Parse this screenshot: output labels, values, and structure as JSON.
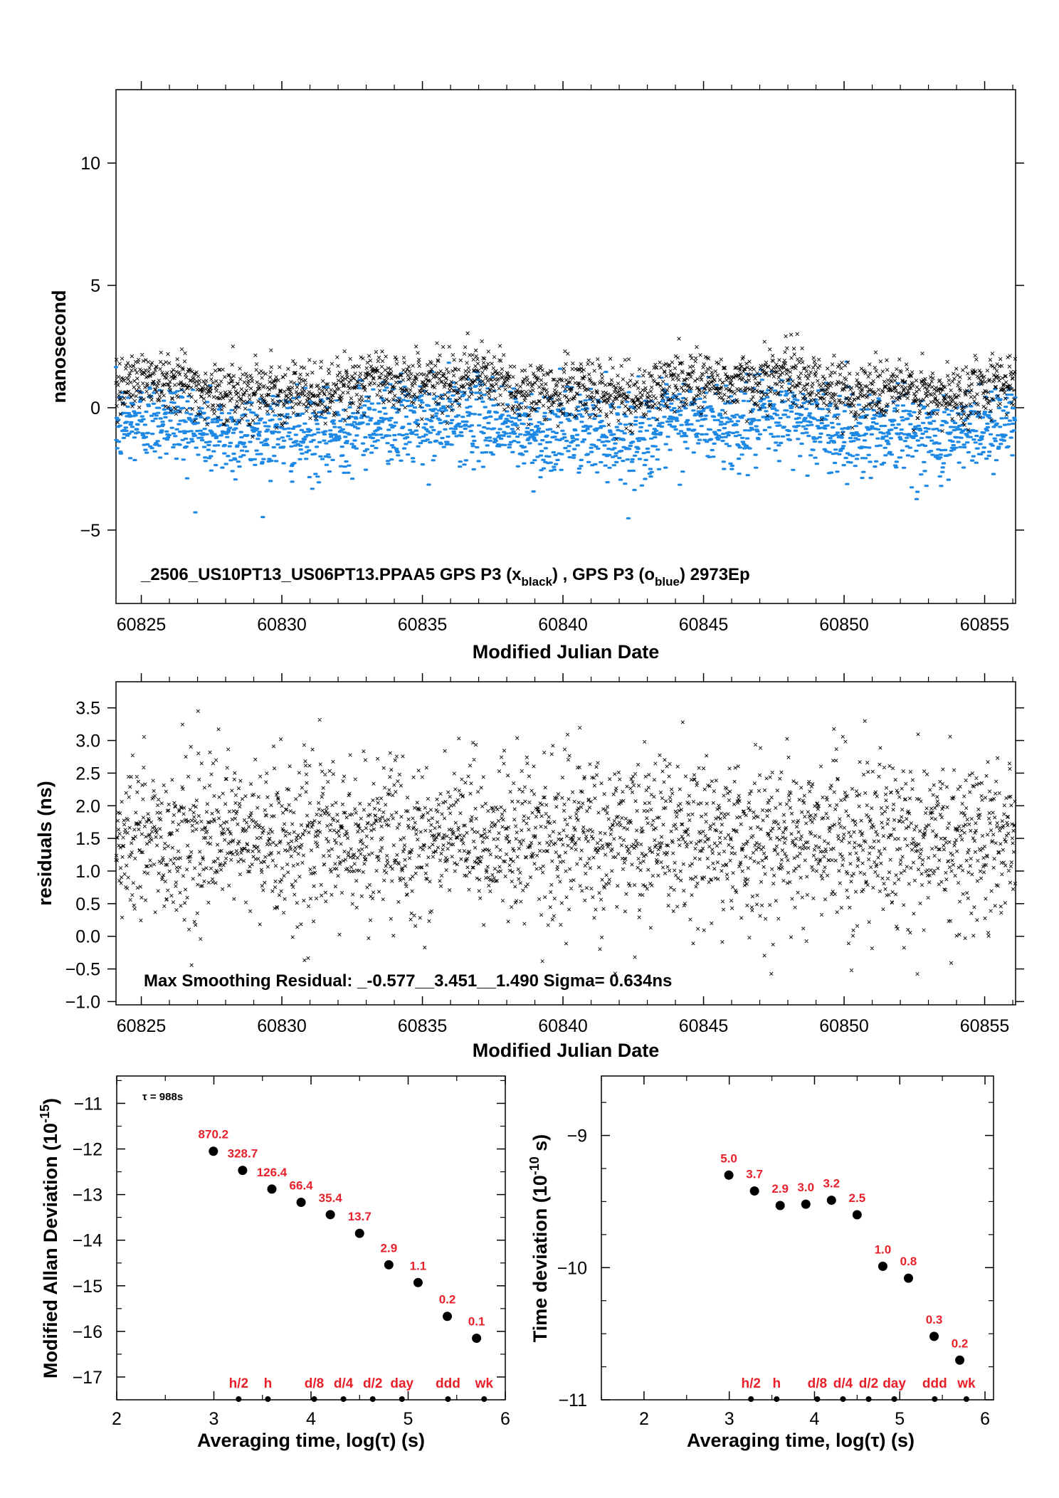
{
  "colors": {
    "black_series": "#000000",
    "blue_series": "#1e88e5",
    "red_labels": "#e8202a"
  },
  "chart_data": [
    {
      "type": "scatter",
      "id": "timeseries",
      "xlabel": "Modified Julian Date",
      "ylabel": "nanosecond",
      "xlim": [
        60824.1,
        60856.1
      ],
      "ylim": [
        -8,
        13
      ],
      "xticks": [
        "60825",
        "60830",
        "60835",
        "60840",
        "60845",
        "60850",
        "60855"
      ],
      "yticks": [
        "-5",
        "0",
        "5",
        "10"
      ],
      "annotation": {
        "prefix": "_2506_US10PT13_US06PT13.PPAA5     GPS P3 (x",
        "sub1": "black",
        "mid": ") ,  GPS P3 (o",
        "sub2": "blue",
        "suffix": ")  2973Ep"
      },
      "series": [
        {
          "name": "GPS P3 (x black)",
          "marker": "x",
          "color": "#000000",
          "mean_ns": 0.9,
          "sigma_ns": 0.6,
          "count": 2973
        },
        {
          "name": "GPS P3 (o blue)",
          "marker": "dot",
          "color": "#1e88e5",
          "mean_ns": -0.8,
          "sigma_ns": 0.85,
          "count": 2973
        }
      ]
    },
    {
      "type": "scatter",
      "id": "residuals",
      "xlabel": "Modified Julian Date",
      "ylabel": "residuals (ns)",
      "xlim": [
        60824.1,
        60856.1
      ],
      "ylim": [
        -1.05,
        3.9
      ],
      "xticks": [
        "60825",
        "60830",
        "60835",
        "60840",
        "60845",
        "60850",
        "60855"
      ],
      "yticks": [
        "−1.0",
        "−0.5",
        "0.0",
        "0.5",
        "1.0",
        "1.5",
        "2.0",
        "2.5",
        "3.0",
        "3.5"
      ],
      "annotation": "Max Smoothing Residual: _-0.577__3.451__1.490  Sigma= 0.634ns",
      "series": [
        {
          "marker": "x",
          "color": "#000000",
          "mean_ns": 1.49,
          "sigma_ns": 0.634,
          "min_ns": -0.577,
          "max_ns": 3.451
        }
      ]
    },
    {
      "type": "scatter",
      "id": "mdev",
      "xlabel": "Averaging time, log(τ) (s)",
      "ylabel_main": "Modified Allan Deviation (10",
      "ylabel_sup": "-15",
      "ylabel_end": ")",
      "xlim": [
        2,
        6
      ],
      "ylim": [
        -17.5,
        -10.4
      ],
      "xticks": [
        "2",
        "3",
        "4",
        "5",
        "6"
      ],
      "yticks": [
        "-17",
        "-16",
        "-15",
        "-14",
        "-13",
        "-12",
        "-11"
      ],
      "tau_label": "τ = 988s",
      "points": [
        {
          "x": 2.995,
          "y": -12.05,
          "label": "870.2"
        },
        {
          "x": 3.296,
          "y": -12.47,
          "label": "328.7"
        },
        {
          "x": 3.597,
          "y": -12.88,
          "label": "126.4"
        },
        {
          "x": 3.898,
          "y": -13.17,
          "label": "66.4"
        },
        {
          "x": 4.199,
          "y": -13.44,
          "label": "35.4"
        },
        {
          "x": 4.5,
          "y": -13.85,
          "label": "13.7"
        },
        {
          "x": 4.801,
          "y": -14.54,
          "label": "2.9"
        },
        {
          "x": 5.102,
          "y": -14.93,
          "label": "1.1"
        },
        {
          "x": 5.403,
          "y": -15.67,
          "label": "0.2"
        },
        {
          "x": 5.704,
          "y": -16.15,
          "label": "0.1"
        }
      ],
      "markers": [
        {
          "x": 3.255,
          "label": "h/2"
        },
        {
          "x": 3.556,
          "label": "h"
        },
        {
          "x": 4.033,
          "label": "d/8"
        },
        {
          "x": 4.334,
          "label": "d/4"
        },
        {
          "x": 4.635,
          "label": "d/2"
        },
        {
          "x": 4.936,
          "label": "day"
        },
        {
          "x": 5.41,
          "label": "ddd"
        },
        {
          "x": 5.782,
          "label": "wk"
        }
      ]
    },
    {
      "type": "scatter",
      "id": "tdev",
      "xlabel": "Averaging time, log(τ) (s)",
      "ylabel_main": "Time deviation (10",
      "ylabel_sup": "-10",
      "ylabel_end": " s)",
      "xlim": [
        1.5,
        6.1
      ],
      "ylim": [
        -11,
        -8.55
      ],
      "xticks": [
        "2",
        "3",
        "4",
        "5",
        "6"
      ],
      "yticks": [
        "-11",
        "-10",
        "-9"
      ],
      "points": [
        {
          "x": 2.995,
          "y": -9.3,
          "label": "5.0"
        },
        {
          "x": 3.296,
          "y": -9.42,
          "label": "3.7"
        },
        {
          "x": 3.597,
          "y": -9.53,
          "label": "2.9"
        },
        {
          "x": 3.898,
          "y": -9.52,
          "label": "3.0"
        },
        {
          "x": 4.199,
          "y": -9.49,
          "label": "3.2"
        },
        {
          "x": 4.5,
          "y": -9.6,
          "label": "2.5"
        },
        {
          "x": 4.801,
          "y": -9.99,
          "label": "1.0"
        },
        {
          "x": 5.102,
          "y": -10.08,
          "label": "0.8"
        },
        {
          "x": 5.403,
          "y": -10.52,
          "label": "0.3"
        },
        {
          "x": 5.704,
          "y": -10.7,
          "label": "0.2"
        }
      ],
      "markers": [
        {
          "x": 3.255,
          "label": "h/2"
        },
        {
          "x": 3.556,
          "label": "h"
        },
        {
          "x": 4.033,
          "label": "d/8"
        },
        {
          "x": 4.334,
          "label": "d/4"
        },
        {
          "x": 4.635,
          "label": "d/2"
        },
        {
          "x": 4.936,
          "label": "day"
        },
        {
          "x": 5.41,
          "label": "ddd"
        },
        {
          "x": 5.782,
          "label": "wk"
        }
      ]
    }
  ]
}
